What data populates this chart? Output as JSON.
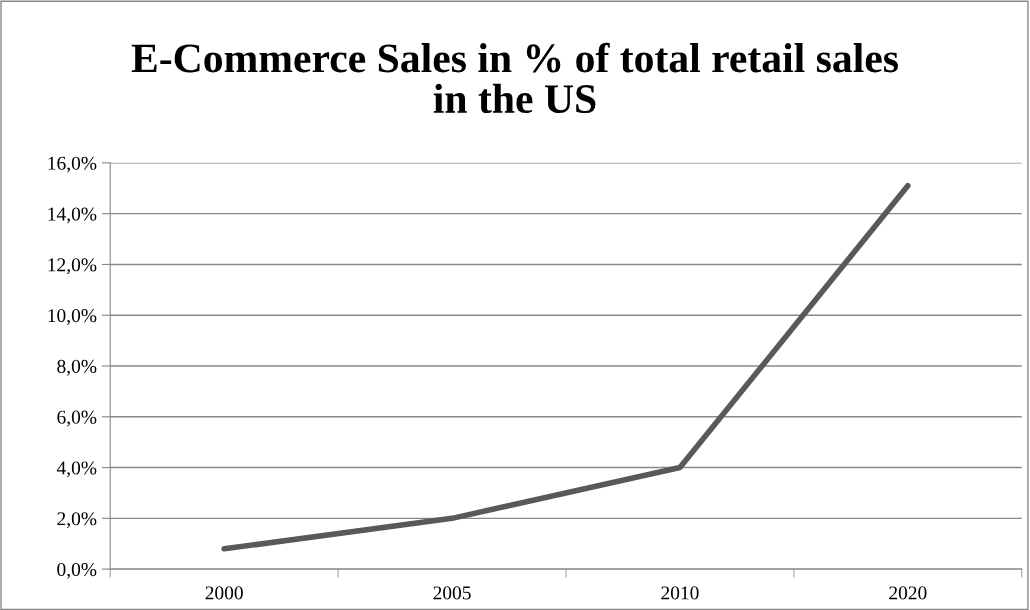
{
  "chart_data": {
    "type": "line",
    "title": "E-Commerce Sales in % of total retail sales\nin the US",
    "categories": [
      "2000",
      "2005",
      "2010",
      "2020"
    ],
    "series": [
      {
        "color": "#595959",
        "values": [
          0.8,
          2.0,
          4.0,
          15.1
        ]
      }
    ],
    "ylim": [
      0,
      16
    ],
    "yticks": [
      {
        "value": 0,
        "label": "0,0%"
      },
      {
        "value": 2,
        "label": "2,0%"
      },
      {
        "value": 4,
        "label": "4,0%"
      },
      {
        "value": 6,
        "label": "6,0%"
      },
      {
        "value": 8,
        "label": "8,0%"
      },
      {
        "value": 10,
        "label": "10,0%"
      },
      {
        "value": 12,
        "label": "12,0%"
      },
      {
        "value": 14,
        "label": "14,0%"
      },
      {
        "value": 16,
        "label": "16,0%"
      }
    ],
    "grid": "y",
    "marker": "none",
    "line_style": "solid"
  }
}
